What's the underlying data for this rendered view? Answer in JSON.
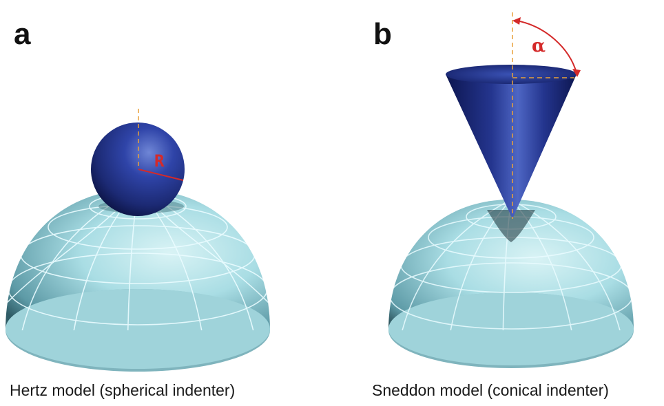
{
  "panel_a": {
    "letter": "a",
    "caption": "Hertz model (spherical indenter)",
    "radius_symbol": "R"
  },
  "panel_b": {
    "letter": "b",
    "caption": "Sneddon model (conical indenter)",
    "angle_symbol": "α"
  },
  "colors": {
    "indenter_blue": "#1c2a74",
    "cell_cyan": "#a9dde4",
    "annotation_red": "#d42a2a",
    "axis_orange": "#e8a13a"
  }
}
